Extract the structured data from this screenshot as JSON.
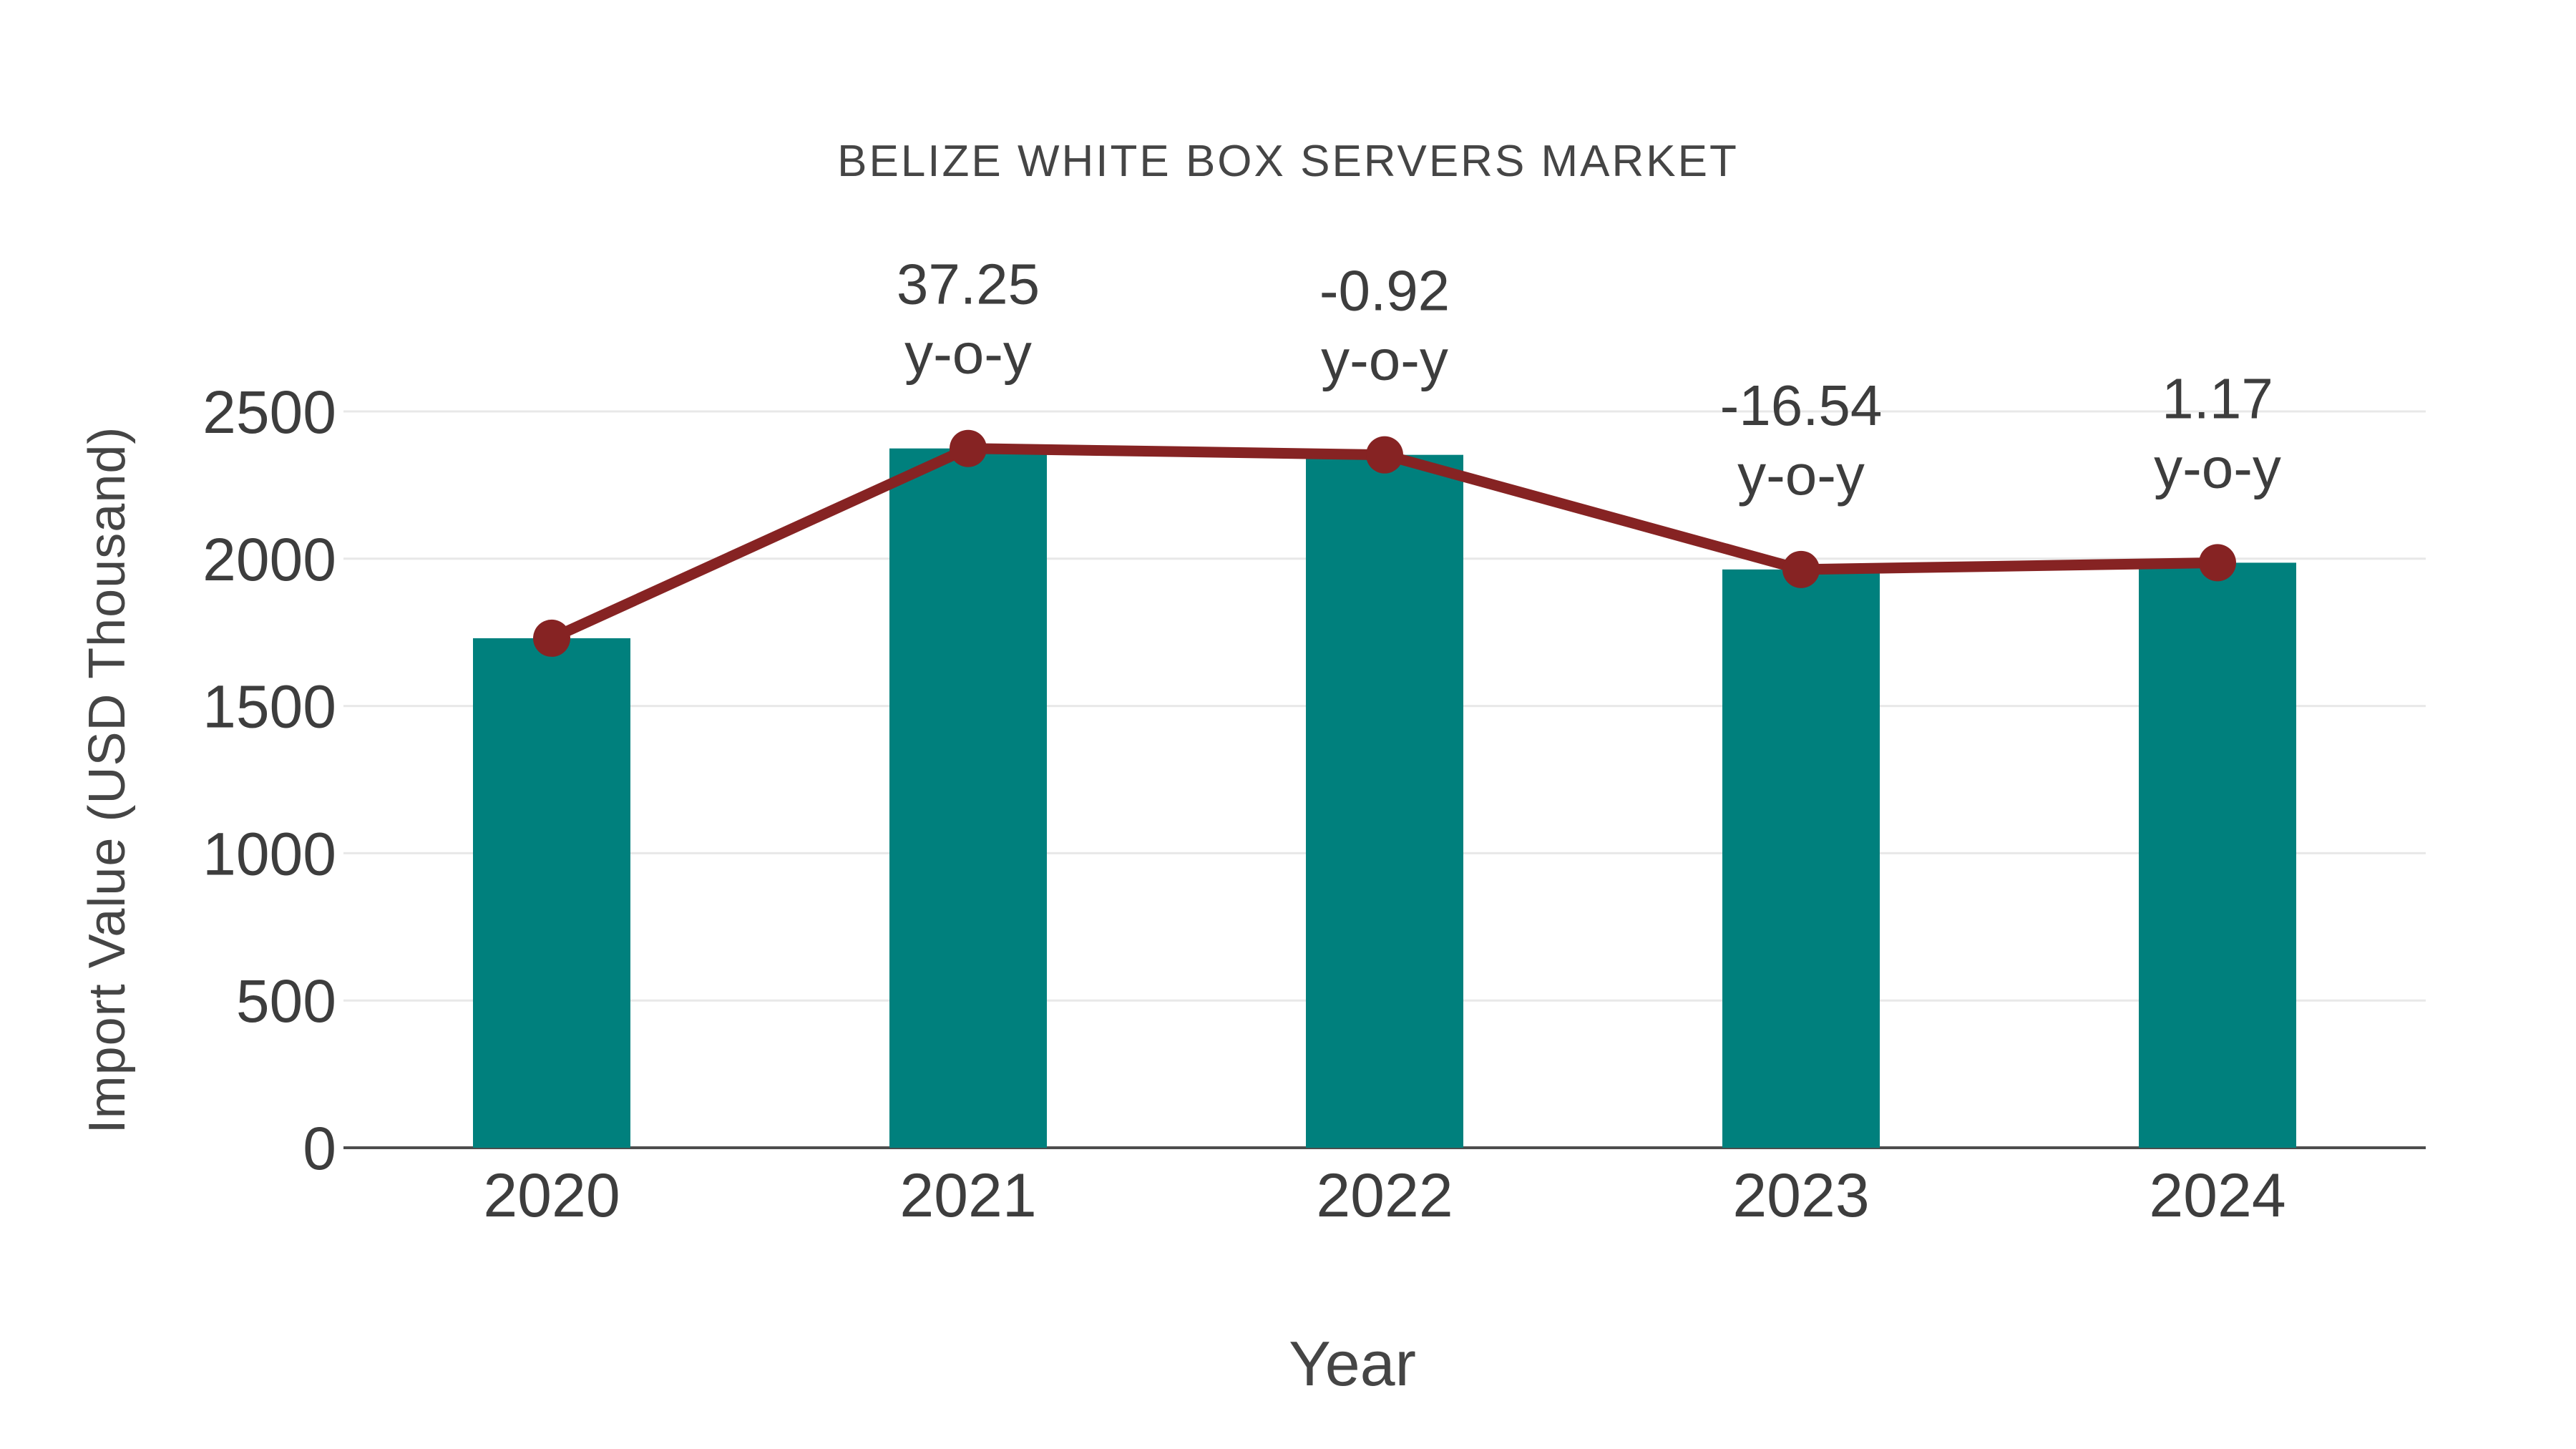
{
  "chart_data": {
    "type": "bar",
    "title": "BELIZE WHITE BOX SERVERS MARKET",
    "xlabel": "Year",
    "ylabel": "Import Value (USD Thousand)",
    "categories": [
      "2020",
      "2021",
      "2022",
      "2023",
      "2024"
    ],
    "series": [
      {
        "name": "Import Value (USD Thousand)",
        "type": "bar",
        "color": "#00807D",
        "values": [
          1730,
          2374.4,
          2352.6,
          1963.5,
          1986.4
        ]
      },
      {
        "name": "y-o-y trend line",
        "type": "line",
        "color": "#862323",
        "values": [
          1730,
          2374.4,
          2352.6,
          1963.5,
          1986.4
        ]
      }
    ],
    "annotations": [
      {
        "category": "2021",
        "line1": "37.25",
        "line2": "y-o-y"
      },
      {
        "category": "2022",
        "line1": "-0.92",
        "line2": "y-o-y"
      },
      {
        "category": "2023",
        "line1": "-16.54",
        "line2": "y-o-y"
      },
      {
        "category": "2024",
        "line1": "1.17",
        "line2": "y-o-y"
      }
    ],
    "ylim": [
      0,
      2500
    ],
    "yticks": [
      0,
      500,
      1000,
      1500,
      2000,
      2500
    ],
    "grid": true,
    "legend_position": "none",
    "colors": {
      "bar": "#00807D",
      "line": "#862323",
      "text": "#3d3d3d",
      "grid": "#e8e8e8",
      "axis": "#4d4d4d",
      "background": "#ffffff"
    }
  }
}
